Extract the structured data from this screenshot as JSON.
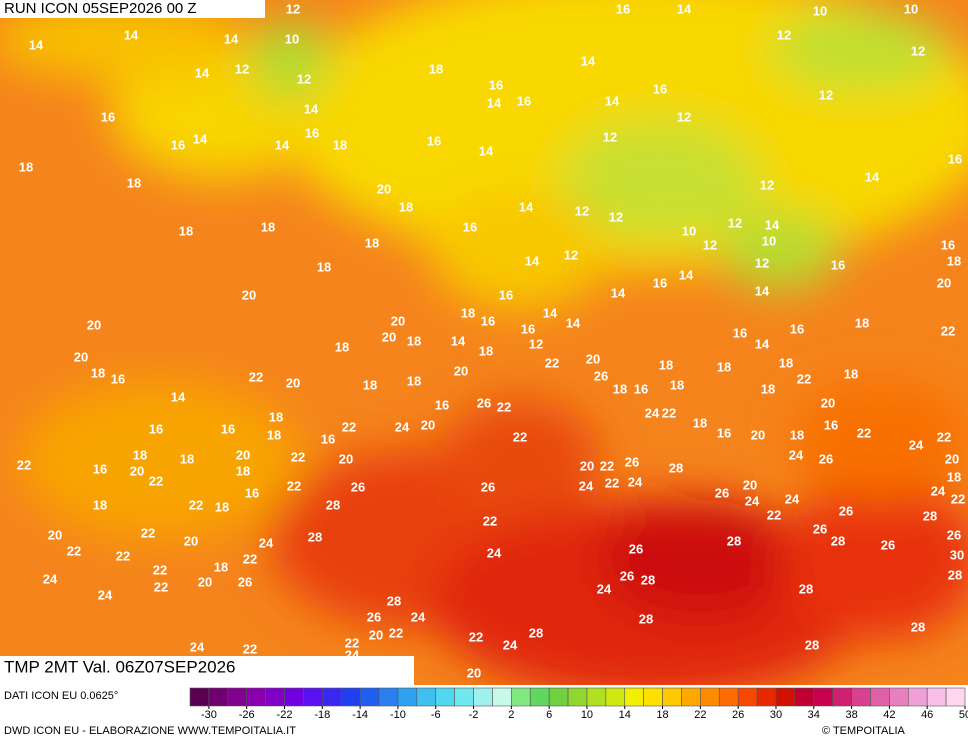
{
  "header": {
    "run": "RUN ICON 05SEP2026 00 Z",
    "title": "TMP 2MT Val. 06Z07SEP2026"
  },
  "footer": {
    "source": "DATI ICON EU 0.0625°",
    "credit": "DWD ICON EU - ELABORAZIONE WWW.TEMPOITALIA.IT",
    "logo": "© TEMPOITALIA"
  },
  "map": {
    "labels": [
      12,
      16,
      14,
      10,
      10,
      14,
      14,
      14,
      10,
      12,
      14,
      18,
      16,
      14,
      12,
      12,
      12,
      14,
      16,
      14,
      16,
      16,
      18,
      14,
      16,
      14,
      14,
      16,
      14,
      16,
      12,
      12,
      12,
      18,
      18,
      20,
      18,
      14,
      12,
      12,
      12,
      14,
      16,
      18,
      18,
      18,
      16,
      14,
      12,
      10,
      12,
      14,
      12,
      10,
      16,
      18,
      18,
      16,
      14,
      14,
      12,
      16,
      20,
      20,
      16,
      14,
      16,
      18,
      14,
      16,
      14,
      20,
      20,
      20,
      18,
      14,
      18,
      12,
      16,
      16,
      18,
      22,
      20,
      18,
      18,
      16,
      22,
      20,
      18,
      18,
      20,
      22,
      20,
      26,
      18,
      16,
      18,
      18,
      18,
      18,
      22,
      18,
      14,
      14,
      18,
      18,
      16,
      16,
      16,
      22,
      24,
      20,
      16,
      26,
      22,
      24,
      22,
      18,
      16,
      20,
      18,
      16,
      18,
      20,
      22,
      24,
      22,
      20,
      22,
      16,
      18,
      20,
      18,
      20,
      18,
      22,
      20,
      22,
      20,
      22,
      26,
      28,
      24,
      26,
      18,
      22,
      22,
      26,
      26,
      24,
      22,
      24,
      20,
      26,
      24,
      24,
      24,
      22,
      18,
      18,
      16,
      22,
      28,
      22,
      22,
      26,
      26,
      28,
      20,
      22,
      20,
      28,
      24,
      28,
      26,
      26,
      28,
      26,
      22,
      22,
      18,
      22,
      24,
      30,
      24,
      22,
      22,
      20,
      26,
      24,
      26,
      28,
      28,
      28,
      24,
      28,
      26,
      24,
      28,
      28,
      20,
      22,
      22,
      22,
      24,
      28,
      28,
      24,
      22,
      24,
      20
    ]
  },
  "colorbar": {
    "min": -32,
    "max": 50,
    "colors": [
      "#5a0050",
      "#700070",
      "#800090",
      "#8a00b0",
      "#8000c8",
      "#7000e0",
      "#5a10f0",
      "#3a28f0",
      "#2040f0",
      "#2060f0",
      "#2a80f0",
      "#30a0f0",
      "#40c0f0",
      "#50d8f0",
      "#70e8f0",
      "#a0f0f0",
      "#c8f8e8",
      "#80e880",
      "#60d860",
      "#70d040",
      "#90d830",
      "#b0e020",
      "#d0e810",
      "#f0f000",
      "#ffe000",
      "#ffc800",
      "#ffa800",
      "#ff8c00",
      "#ff6c00",
      "#f84800",
      "#e82800",
      "#d01000",
      "#c00030",
      "#c80050",
      "#d02070",
      "#d84090",
      "#e060a8",
      "#e880c0",
      "#f0a0d8",
      "#f8c0e8",
      "#ffd8f0"
    ],
    "ticks": [
      -30,
      -26,
      -22,
      -18,
      -14,
      -10,
      -6,
      -2,
      2,
      6,
      10,
      14,
      18,
      22,
      26,
      30,
      34,
      38,
      42,
      46,
      50
    ]
  }
}
